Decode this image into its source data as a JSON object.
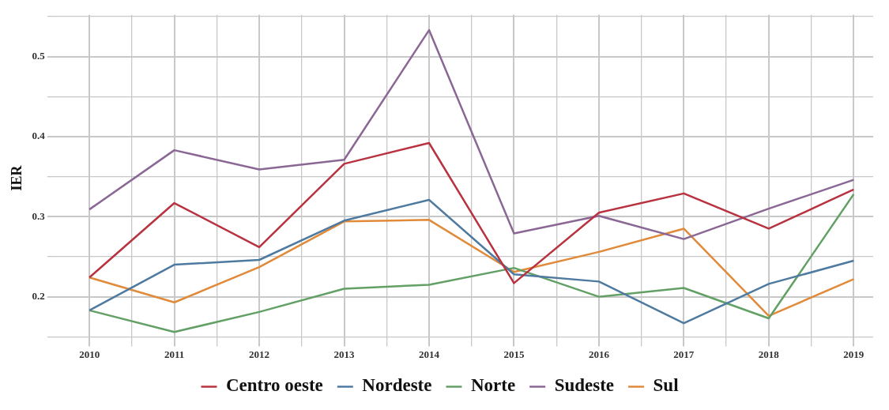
{
  "chart_data": {
    "type": "line",
    "ylabel": "IER",
    "x": [
      2010,
      2011,
      2012,
      2013,
      2014,
      2015,
      2016,
      2017,
      2018,
      2019
    ],
    "series": [
      {
        "name": "Centro oeste",
        "color": "#b83240",
        "values": [
          0.224,
          0.317,
          0.262,
          0.366,
          0.392,
          0.217,
          0.305,
          0.329,
          0.285,
          0.334
        ]
      },
      {
        "name": "Nordeste",
        "color": "#4f7aa0",
        "values": [
          0.183,
          0.24,
          0.246,
          0.295,
          0.321,
          0.228,
          0.219,
          0.167,
          0.216,
          0.245
        ]
      },
      {
        "name": "Norte",
        "color": "#63a066",
        "values": [
          0.183,
          0.156,
          0.181,
          0.21,
          0.215,
          0.236,
          0.2,
          0.211,
          0.173,
          0.328
        ]
      },
      {
        "name": "Sudeste",
        "color": "#8a6794",
        "values": [
          0.309,
          0.383,
          0.359,
          0.371,
          0.533,
          0.279,
          0.301,
          0.272,
          0.31,
          0.346
        ]
      },
      {
        "name": "Sul",
        "color": "#e08a3a",
        "values": [
          0.224,
          0.193,
          0.237,
          0.294,
          0.296,
          0.231,
          0.256,
          0.285,
          0.176,
          0.222
        ]
      }
    ],
    "xlim": [
      2009.56,
      2019.23
    ],
    "xticks": [
      2010,
      {
        "value": 2010.5,
        "label": null
      },
      2011,
      {
        "value": 2011.5,
        "label": null
      },
      2012,
      {
        "value": 2012.5,
        "label": null
      },
      2013,
      {
        "value": 2013.5,
        "label": null
      },
      2014,
      {
        "value": 2014.5,
        "label": null
      },
      2015,
      {
        "value": 2015.5,
        "label": null
      },
      2016,
      {
        "value": 2016.5,
        "label": null
      },
      2017,
      {
        "value": 2017.5,
        "label": null
      },
      2018,
      {
        "value": 2018.5,
        "label": null
      },
      2019
    ],
    "ylim": [
      0.144,
      0.552
    ],
    "yticks": [
      {
        "value": 0.15,
        "label": null
      },
      0.2,
      {
        "value": 0.25,
        "label": null
      },
      0.3,
      {
        "value": 0.35,
        "label": null
      },
      0.4,
      {
        "value": 0.45,
        "label": null
      },
      0.5,
      {
        "value": 0.55,
        "label": null
      }
    ],
    "grid": true,
    "legend": "bottom",
    "marker": "none",
    "line_style": "solid"
  }
}
